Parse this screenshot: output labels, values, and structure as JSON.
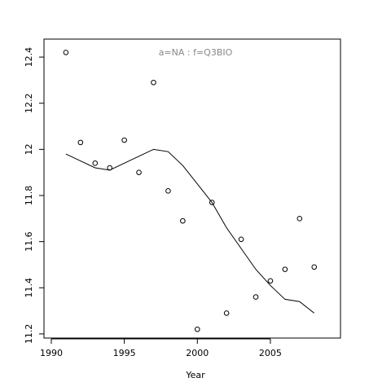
{
  "chart_data": {
    "type": "scatter",
    "title": "a=NA  :  f=Q3BIO",
    "x_label": "Year",
    "x": [
      1991,
      1992,
      1993,
      1994,
      1995,
      1996,
      1997,
      1998,
      1999,
      2000,
      2001,
      2002,
      2003,
      2004,
      2005,
      2006,
      2007,
      2008
    ],
    "series": [
      {
        "style": "points",
        "color": "#000000",
        "values": [
          12.42,
          12.03,
          11.94,
          11.92,
          12.04,
          11.9,
          12.29,
          11.82,
          11.69,
          11.22,
          11.77,
          11.29,
          11.61,
          11.36,
          11.43,
          11.48,
          11.7,
          11.49
        ]
      },
      {
        "style": "line",
        "color": "#000000",
        "values": [
          11.98,
          11.95,
          11.92,
          11.91,
          11.94,
          11.97,
          12.0,
          11.99,
          11.93,
          11.85,
          11.77,
          11.66,
          11.57,
          11.48,
          11.41,
          11.35,
          11.34,
          11.29
        ]
      }
    ],
    "xlim": [
      1989.5,
      2009.8
    ],
    "xticks": [
      1990,
      1995,
      2000,
      2005
    ],
    "ylim": [
      11.182,
      12.478
    ],
    "yticks": [
      11.2,
      11.4,
      11.6,
      11.8,
      12.0,
      12.2,
      12.4
    ]
  }
}
